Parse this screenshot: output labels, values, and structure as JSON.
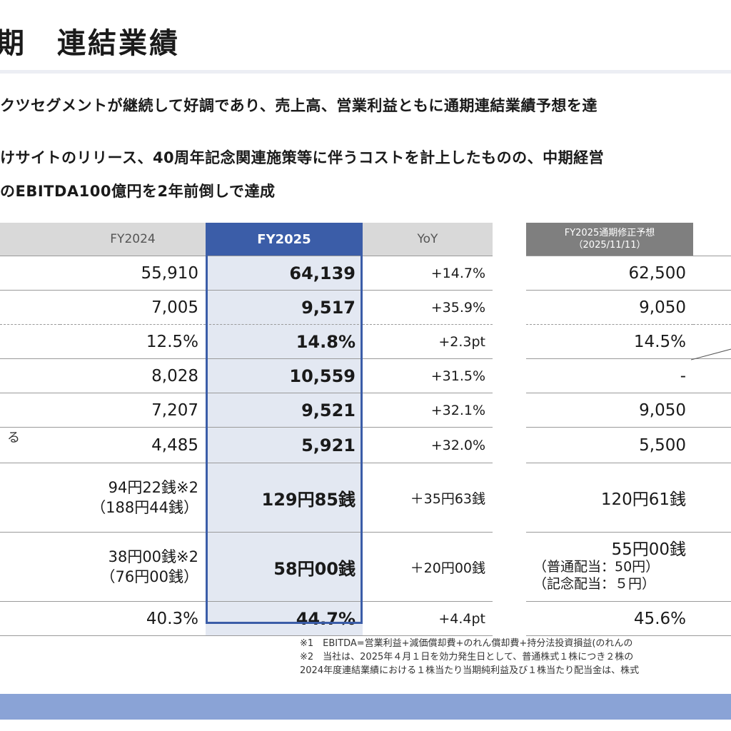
{
  "page": {
    "title": "期　連結業績",
    "bullets": [
      "クツセグメントが継続して好調であり、売上高、営業利益ともに通期連結業績予想を達",
      "けサイトのリリース、40周年記念関連施策等に伴うコストを計上したものの、中期経営",
      "のEBITDA100億円を2年前倒しで達成"
    ]
  },
  "table": {
    "headers": {
      "fy2024": "FY2024",
      "fy2025": "FY2025",
      "yoy": "YoY",
      "forecast_line1": "FY2025通期修正予想",
      "forecast_line2": "（2025/11/11）"
    },
    "rows": [
      {
        "label": "",
        "fy2024": "55,910",
        "fy2025": "64,139",
        "yoy": "+14.7%",
        "forecast": "62,500"
      },
      {
        "label": "",
        "fy2024": "7,005",
        "fy2025": "9,517",
        "yoy": "+35.9%",
        "forecast": "9,050"
      },
      {
        "label": "",
        "fy2024": "12.5%",
        "fy2025": "14.8%",
        "yoy": "+2.3pt",
        "forecast": "14.5%"
      },
      {
        "label": "",
        "fy2024": "8,028",
        "fy2025": "10,559",
        "yoy": "+31.5%",
        "forecast": "-"
      },
      {
        "label": "",
        "fy2024": "7,207",
        "fy2025": "9,521",
        "yoy": "+32.1%",
        "forecast": "9,050"
      },
      {
        "label": "る",
        "fy2024": "4,485",
        "fy2025": "5,921",
        "yoy": "+32.0%",
        "forecast": "5,500"
      },
      {
        "label": "",
        "fy2024_line1": "94円22銭※2",
        "fy2024_line2": "（188円44銭）",
        "fy2025": "129円85銭",
        "yoy": "＋35円63銭",
        "forecast": "120円61銭"
      },
      {
        "label": "",
        "fy2024_line1": "38円00銭※2",
        "fy2024_line2": "（76円00銭）",
        "fy2025": "58円00銭",
        "yoy": "＋20円00銭",
        "forecast_line1": "55円00銭",
        "forecast_line2": "（普通配当：50円）",
        "forecast_line3": "（記念配当：５円）"
      },
      {
        "label": "",
        "fy2024": "40.3%",
        "fy2025": "44.7%",
        "yoy": "+4.4pt",
        "forecast": "45.6%"
      }
    ]
  },
  "notes": [
    "※1　EBITDA=営業利益+減価償却費+のれん償却費+持分法投資損益(のれんの",
    "※2　当社は、2025年４月１日を効力発生日として、普通株式１株につき２株の",
    "2024年度連結業績における１株当たり当期純利益及び１株当たり配当金は、株式"
  ],
  "colors": {
    "accent": "#3b5da8",
    "fy2025_fill": "#e3e8f2",
    "header_gray": "#d9d9d9",
    "forecast_header": "#7f7f7f",
    "footer_bar": "#8aa3d6"
  }
}
